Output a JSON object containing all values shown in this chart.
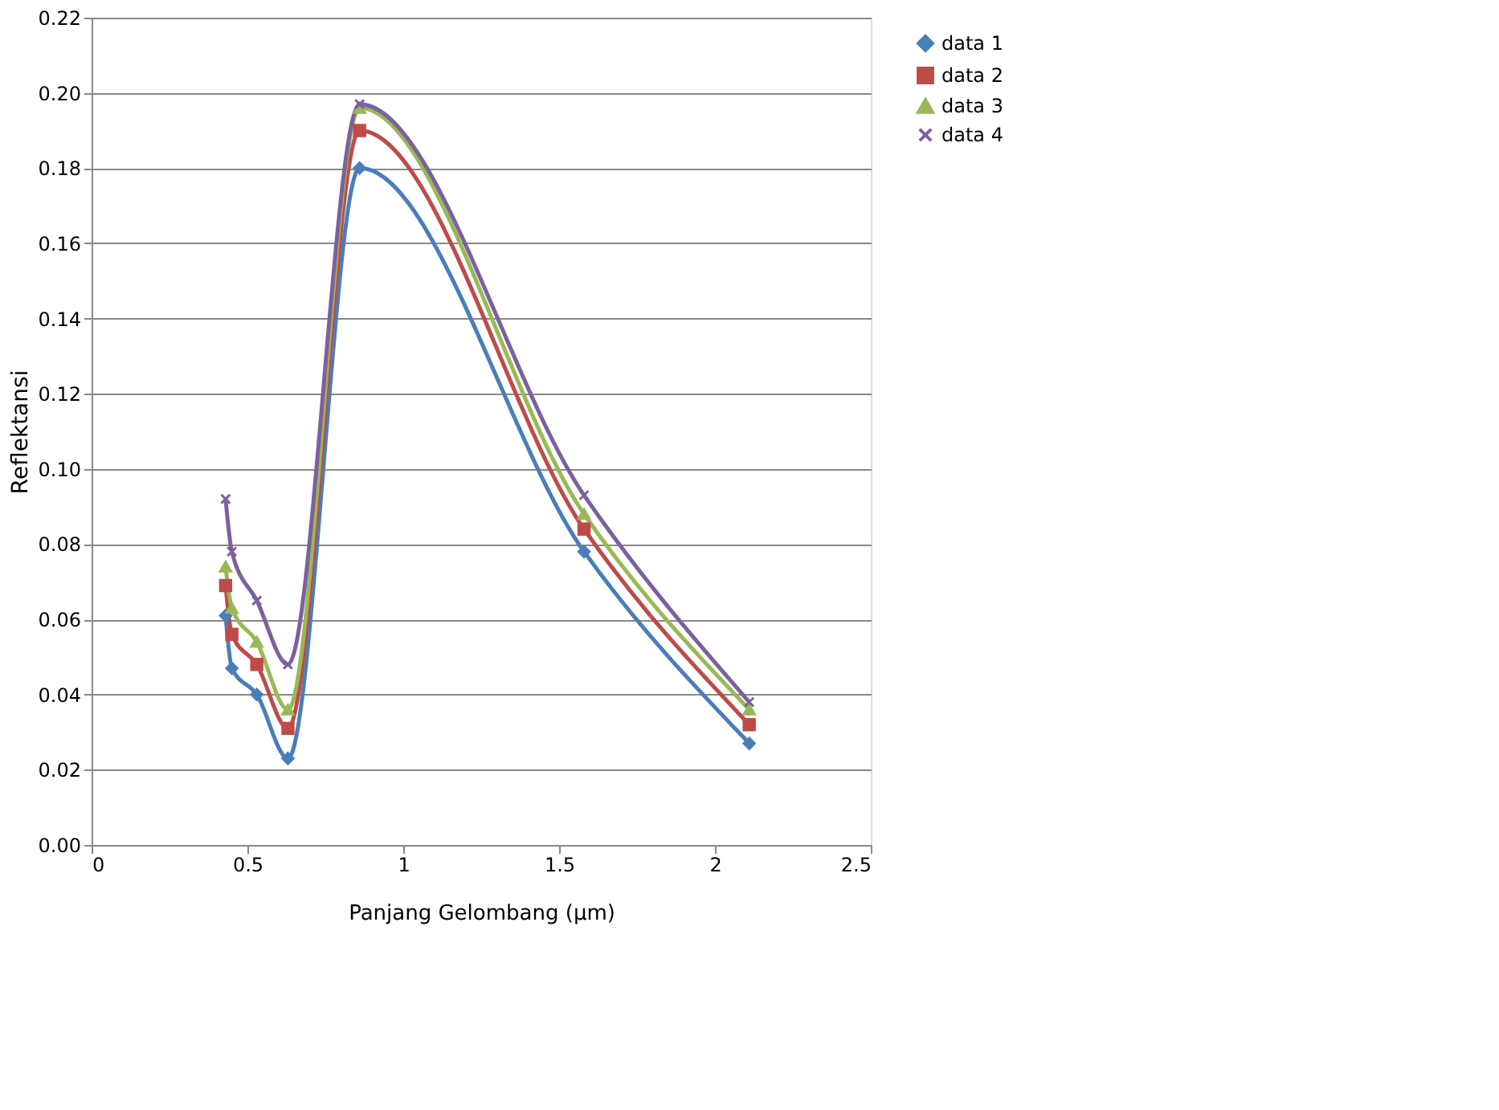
{
  "chart_data": {
    "type": "line",
    "xlabel": "Panjang Gelombang (µm)",
    "ylabel": "Reflektansi",
    "x": [
      0.43,
      0.45,
      0.53,
      0.63,
      0.86,
      1.58,
      2.11
    ],
    "series": [
      {
        "name": "data 1",
        "color": "#4a7ebb",
        "marker": "diamond",
        "values": [
          0.061,
          0.047,
          0.04,
          0.023,
          0.18,
          0.078,
          0.027
        ]
      },
      {
        "name": "data 2",
        "color": "#be4b48",
        "marker": "square",
        "values": [
          0.069,
          0.056,
          0.048,
          0.031,
          0.19,
          0.084,
          0.032
        ]
      },
      {
        "name": "data 3",
        "color": "#98b954",
        "marker": "triangle",
        "values": [
          0.074,
          0.063,
          0.054,
          0.036,
          0.196,
          0.088,
          0.036
        ]
      },
      {
        "name": "data 4",
        "color": "#7d60a0",
        "marker": "cross",
        "values": [
          0.092,
          0.078,
          0.065,
          0.048,
          0.197,
          0.093,
          0.038
        ]
      }
    ],
    "xlim": [
      0,
      2.5
    ],
    "xticks": [
      0,
      0.5,
      1,
      1.5,
      2,
      2.5
    ],
    "ylim": [
      0,
      0.22
    ],
    "yticks": [
      {
        "value": 0,
        "label": "0.00"
      },
      {
        "value": 0.02,
        "label": "0.02"
      },
      {
        "value": 0.04,
        "label": "0.04"
      },
      {
        "value": 0.06,
        "label": "0.06"
      },
      {
        "value": 0.08,
        "label": "0.08"
      },
      {
        "value": 0.1,
        "label": "0.10"
      },
      {
        "value": 0.12,
        "label": "0.12"
      },
      {
        "value": 0.14,
        "label": "0.14"
      },
      {
        "value": 0.16,
        "label": "0.16"
      },
      {
        "value": 0.18,
        "label": "0.18"
      },
      {
        "value": 0.2,
        "label": "0.20"
      },
      {
        "value": 0.22,
        "label": "0.22"
      }
    ],
    "grid": "y",
    "legend": "right",
    "line_style": "solid"
  }
}
